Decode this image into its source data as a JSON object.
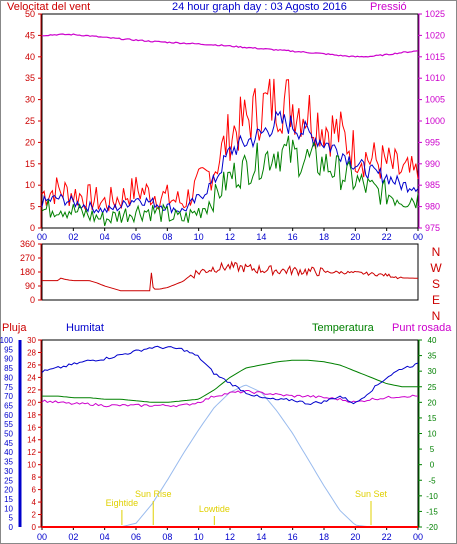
{
  "title": "24 hour graph day : 03 Agosto 2016",
  "colors": {
    "red": "#ff0000",
    "darkred": "#cc0000",
    "blue": "#0000cc",
    "green": "#008000",
    "magenta": "#cc00cc",
    "lightblue": "#99bbee",
    "yellow": "#e0d000",
    "axis_left": "#cc0000",
    "axis_right": "#cc00cc",
    "axis_blue": "#0000cc",
    "axis_green": "#008000",
    "time_label": "#0000cc"
  },
  "chart_data": [
    {
      "type": "line",
      "name": "wind-pressure",
      "title": "24 hour graph day : 03 Agosto 2016",
      "ylabel_left": "Velocitat del vent",
      "ylabel_right": "Pressió",
      "x_ticks": [
        "00",
        "02",
        "04",
        "06",
        "08",
        "10",
        "12",
        "14",
        "16",
        "18",
        "20",
        "22",
        "00"
      ],
      "y_left_ticks": [
        0,
        5,
        10,
        15,
        20,
        25,
        30,
        35,
        40,
        45,
        50
      ],
      "y_right_ticks": [
        975,
        980,
        985,
        990,
        995,
        1000,
        1005,
        1010,
        1015,
        1020,
        1025
      ],
      "ylim_left": [
        0,
        50
      ],
      "ylim_right": [
        975,
        1025
      ],
      "x": [
        0,
        1,
        2,
        3,
        4,
        5,
        6,
        7,
        8,
        9,
        10,
        11,
        12,
        13,
        14,
        15,
        16,
        17,
        18,
        19,
        20,
        21,
        22,
        23,
        24
      ],
      "series": [
        {
          "name": "gust",
          "axis": "left",
          "color": "red",
          "values": [
            8,
            9,
            8,
            7,
            6,
            7,
            9,
            8,
            7,
            6,
            10,
            14,
            22,
            25,
            28,
            30,
            29,
            27,
            24,
            22,
            18,
            16,
            15,
            13,
            12
          ]
        },
        {
          "name": "average",
          "axis": "left",
          "color": "blue",
          "values": [
            6,
            7,
            6,
            5,
            4,
            5,
            7,
            6,
            5,
            4,
            7,
            11,
            18,
            20,
            22,
            25,
            24,
            22,
            20,
            18,
            15,
            13,
            12,
            10,
            10
          ]
        },
        {
          "name": "minimum",
          "axis": "left",
          "color": "green",
          "values": [
            4,
            5,
            4,
            3,
            2,
            3,
            4,
            4,
            3,
            2,
            4,
            7,
            12,
            14,
            16,
            18,
            17,
            16,
            15,
            13,
            11,
            9,
            8,
            7,
            7
          ]
        },
        {
          "name": "pressure",
          "axis": "right",
          "color": "magenta",
          "values": [
            1020,
            1020.2,
            1020.2,
            1019.9,
            1019.5,
            1019.2,
            1018.9,
            1018.6,
            1018.4,
            1018.2,
            1018.0,
            1017.8,
            1017.5,
            1017.2,
            1016.9,
            1016.6,
            1016.3,
            1016.0,
            1015.7,
            1015.3,
            1015.0,
            1015.1,
            1015.5,
            1016.0,
            1016.4
          ]
        }
      ]
    },
    {
      "type": "line",
      "name": "wind-direction",
      "y_ticks": [
        0,
        90,
        180,
        270,
        360
      ],
      "y_right_labels": [
        "N",
        "W",
        "S",
        "E",
        "N"
      ],
      "ylim": [
        0,
        360
      ],
      "x": [
        0,
        1,
        1.2,
        1.6,
        2,
        3,
        3.5,
        4,
        5,
        6,
        6.9,
        7,
        7.1,
        7.5,
        8,
        8.5,
        9,
        9.5,
        10,
        11,
        12,
        13,
        14,
        15,
        16,
        17,
        18,
        19,
        20,
        21,
        22,
        23,
        24
      ],
      "values": [
        125,
        125,
        140,
        130,
        125,
        125,
        110,
        90,
        60,
        60,
        60,
        200,
        70,
        70,
        80,
        100,
        120,
        160,
        180,
        205,
        215,
        205,
        195,
        190,
        190,
        185,
        180,
        178,
        175,
        168,
        160,
        142,
        140
      ],
      "color": "darkred"
    },
    {
      "type": "line",
      "name": "rain-humidity-temp-dew",
      "labels": {
        "rain": "Pluja",
        "humidity": "Humitat",
        "temperature": "Temperatura",
        "dewpoint": "Punt rosada"
      },
      "x_ticks": [
        "00",
        "02",
        "04",
        "06",
        "08",
        "10",
        "12",
        "14",
        "16",
        "18",
        "20",
        "22",
        "00"
      ],
      "y_rain_ticks": [
        0,
        5,
        10,
        15,
        20,
        25,
        30,
        35,
        40,
        45,
        50,
        55,
        60,
        65,
        70,
        75,
        80,
        85,
        90,
        95,
        100
      ],
      "y_humidity_ticks": [
        0,
        2,
        4,
        6,
        8,
        10,
        12,
        14,
        16,
        18,
        20,
        22,
        24,
        26,
        28,
        30
      ],
      "y_temp_ticks": [
        -20,
        -15,
        -10,
        -5,
        0,
        5,
        10,
        15,
        20,
        25,
        30,
        35,
        40
      ],
      "ylim_humidity": [
        0,
        100
      ],
      "ylim_temp": [
        -20,
        40
      ],
      "x": [
        0,
        1,
        2,
        3,
        4,
        5,
        6,
        7,
        8,
        9,
        10,
        11,
        12,
        13,
        14,
        15,
        16,
        17,
        18,
        19,
        20,
        21,
        22,
        23,
        24
      ],
      "series": [
        {
          "name": "humidity",
          "axis": "humidity",
          "color": "blue",
          "values": [
            83,
            85,
            87,
            89,
            90,
            92,
            94,
            96,
            96,
            95,
            91,
            82,
            77,
            72,
            69,
            68,
            68,
            66,
            67,
            70,
            66,
            73,
            80,
            85,
            87
          ]
        },
        {
          "name": "temperature",
          "axis": "temp",
          "color": "green",
          "values": [
            22,
            22,
            21.5,
            21.5,
            21,
            21,
            20.5,
            20,
            20,
            20.5,
            21,
            24,
            28,
            31,
            32,
            33,
            33.5,
            33.5,
            33,
            32,
            30,
            28,
            26,
            25,
            25
          ]
        },
        {
          "name": "dewpoint",
          "axis": "temp",
          "color": "magenta",
          "values": [
            20.5,
            20,
            19.5,
            19.5,
            19,
            19,
            19,
            19,
            19,
            19,
            20,
            22,
            23,
            23.5,
            23,
            22.5,
            22,
            22,
            21.5,
            21,
            20,
            21,
            21.5,
            22,
            22
          ]
        },
        {
          "name": "solar",
          "axis": "humidity",
          "color": "lightblue",
          "values": [
            0,
            0,
            0,
            0,
            0,
            0,
            2,
            12,
            25,
            39,
            52,
            64,
            72,
            76,
            72,
            62,
            50,
            36,
            22,
            9,
            1,
            0,
            0,
            0,
            0
          ]
        },
        {
          "name": "rain",
          "axis": "humidity",
          "color": "red",
          "values": [
            0,
            0,
            0,
            0,
            0,
            0,
            0,
            0,
            0,
            0,
            0,
            0,
            0,
            0,
            0,
            0,
            0,
            0,
            0,
            0,
            0,
            0,
            0,
            0,
            0
          ]
        }
      ],
      "annotations": [
        {
          "text": "Sun Rise",
          "x": 7.1
        },
        {
          "text": "Lowtide",
          "x": 11.0
        },
        {
          "text": "Sun Set",
          "x": 21.0
        },
        {
          "text": "Eightide",
          "x": 5.1
        }
      ]
    }
  ]
}
